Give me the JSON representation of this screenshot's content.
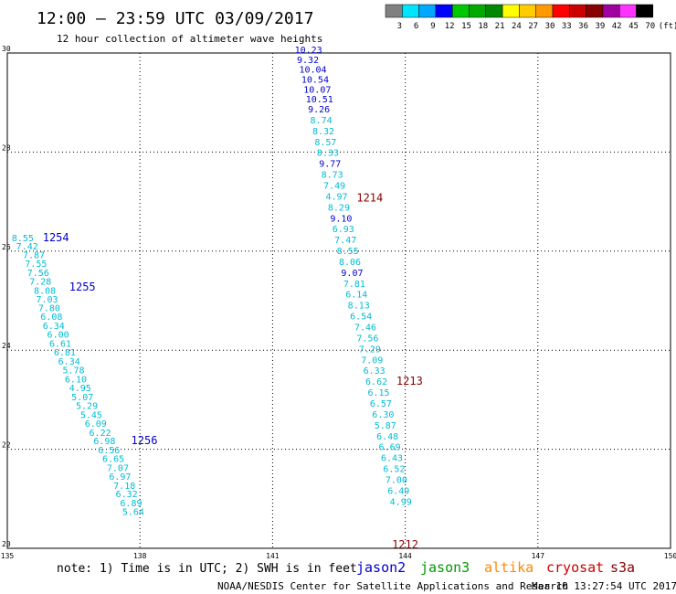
{
  "header": {
    "title": "12:00 — 23:59 UTC 03/09/2017",
    "subtitle": "12 hour collection of altimeter wave heights"
  },
  "legend": {
    "unit": "(ft)",
    "colors": [
      "#808080",
      "#00e5ff",
      "#00a8ff",
      "#0000ff",
      "#00c800",
      "#00aa00",
      "#008800",
      "#ffff00",
      "#ffcc00",
      "#ff9900",
      "#ff0000",
      "#cc0000",
      "#880000",
      "#a000a0",
      "#ff33ff",
      "#000000"
    ],
    "labels": [
      "3",
      "6",
      "9",
      "12",
      "15",
      "18",
      "21",
      "24",
      "27",
      "30",
      "33",
      "36",
      "39",
      "42",
      "45",
      "70"
    ]
  },
  "footer": {
    "note": "note: 1) Time is in UTC; 2) SWH is in feet",
    "credit": "NOAA/NESDIS Center for Satellite Applications and Research",
    "timestamp": "Mar 10 13:27:54 UTC 2017"
  },
  "satellites": [
    {
      "name": "jason2",
      "color": "#0000cc"
    },
    {
      "name": "jason3",
      "color": "#009900"
    },
    {
      "name": "altika",
      "color": "#ff8800"
    },
    {
      "name": "cryosat",
      "color": "#cc0000"
    },
    {
      "name": "s3a",
      "color": "#880000"
    }
  ],
  "chart_data": {
    "type": "scatter",
    "xlim": [
      135,
      150
    ],
    "ylim": [
      20,
      30
    ],
    "x_ticks": [
      "135",
      "138",
      "141",
      "144",
      "147",
      "150"
    ],
    "y_ticks": [
      "20",
      "22",
      "24",
      "26",
      "28",
      "30"
    ],
    "grid": true,
    "annotations": [
      {
        "text": "1254",
        "x": 135.8,
        "y": 26.2,
        "color": "#0000cc"
      },
      {
        "text": "1255",
        "x": 136.4,
        "y": 25.2,
        "color": "#0000cc"
      },
      {
        "text": "1256",
        "x": 137.8,
        "y": 22.1,
        "color": "#0000cc"
      },
      {
        "text": "1214",
        "x": 142.9,
        "y": 27.0,
        "color": "#880000"
      },
      {
        "text": "1213",
        "x": 143.8,
        "y": 23.3,
        "color": "#880000"
      },
      {
        "text": "1212",
        "x": 143.7,
        "y": 20.0,
        "color": "#880000"
      }
    ],
    "series": [
      {
        "name": "jason2",
        "points": [
          {
            "x": 135.1,
            "y": 26.2,
            "v": "8.55"
          },
          {
            "x": 135.2,
            "y": 26.03,
            "v": "7.42"
          },
          {
            "x": 135.35,
            "y": 25.86,
            "v": "7.87"
          },
          {
            "x": 135.4,
            "y": 25.68,
            "v": "7.55"
          },
          {
            "x": 135.45,
            "y": 25.5,
            "v": "7.56"
          },
          {
            "x": 135.5,
            "y": 25.32,
            "v": "7.28"
          },
          {
            "x": 135.6,
            "y": 25.14,
            "v": "8.08"
          },
          {
            "x": 135.65,
            "y": 24.96,
            "v": "7.03"
          },
          {
            "x": 135.7,
            "y": 24.79,
            "v": "7.80"
          },
          {
            "x": 135.75,
            "y": 24.61,
            "v": "6.08"
          },
          {
            "x": 135.8,
            "y": 24.43,
            "v": "6.34"
          },
          {
            "x": 135.9,
            "y": 24.25,
            "v": "6.00"
          },
          {
            "x": 135.95,
            "y": 24.07,
            "v": "6.61"
          },
          {
            "x": 136.05,
            "y": 23.89,
            "v": "6.81"
          },
          {
            "x": 136.15,
            "y": 23.71,
            "v": "6.34"
          },
          {
            "x": 136.25,
            "y": 23.53,
            "v": "5.78"
          },
          {
            "x": 136.3,
            "y": 23.35,
            "v": "6.10"
          },
          {
            "x": 136.4,
            "y": 23.17,
            "v": "4.95"
          },
          {
            "x": 136.45,
            "y": 22.99,
            "v": "5.07"
          },
          {
            "x": 136.55,
            "y": 22.81,
            "v": "5.29"
          },
          {
            "x": 136.65,
            "y": 22.63,
            "v": "5.45"
          },
          {
            "x": 136.75,
            "y": 22.45,
            "v": "6.09"
          },
          {
            "x": 136.85,
            "y": 22.27,
            "v": "6.22"
          },
          {
            "x": 136.95,
            "y": 22.1,
            "v": "6.98"
          },
          {
            "x": 137.05,
            "y": 21.92,
            "v": "6.56"
          },
          {
            "x": 137.15,
            "y": 21.74,
            "v": "6.65"
          },
          {
            "x": 137.25,
            "y": 21.56,
            "v": "7.07"
          },
          {
            "x": 137.3,
            "y": 21.38,
            "v": "6.97"
          },
          {
            "x": 137.4,
            "y": 21.2,
            "v": "7.18"
          },
          {
            "x": 137.45,
            "y": 21.03,
            "v": "6.32"
          },
          {
            "x": 137.55,
            "y": 20.85,
            "v": "6.89"
          },
          {
            "x": 137.6,
            "y": 20.67,
            "v": "5.64"
          },
          {
            "x": 141.5,
            "y": 30.0,
            "v": "10.23"
          },
          {
            "x": 141.55,
            "y": 29.8,
            "v": "9.32"
          },
          {
            "x": 141.6,
            "y": 29.6,
            "v": "10.04"
          },
          {
            "x": 141.65,
            "y": 29.4,
            "v": "10.54"
          },
          {
            "x": 141.7,
            "y": 29.2,
            "v": "10.07"
          },
          {
            "x": 141.75,
            "y": 29.0,
            "v": "10.51"
          },
          {
            "x": 141.8,
            "y": 28.8,
            "v": "9.26"
          },
          {
            "x": 141.85,
            "y": 28.58,
            "v": "8.74"
          },
          {
            "x": 141.9,
            "y": 28.36,
            "v": "8.32"
          },
          {
            "x": 141.95,
            "y": 28.14,
            "v": "8.57"
          },
          {
            "x": 142.0,
            "y": 27.92,
            "v": "8.33"
          },
          {
            "x": 142.05,
            "y": 27.7,
            "v": "9.77"
          },
          {
            "x": 142.1,
            "y": 27.48,
            "v": "8.73"
          },
          {
            "x": 142.15,
            "y": 27.26,
            "v": "7.49"
          },
          {
            "x": 142.2,
            "y": 27.04,
            "v": "4.97"
          },
          {
            "x": 142.25,
            "y": 26.82,
            "v": "8.29"
          },
          {
            "x": 142.3,
            "y": 26.6,
            "v": "9.10"
          },
          {
            "x": 142.35,
            "y": 26.38,
            "v": "6.93"
          },
          {
            "x": 142.4,
            "y": 26.16,
            "v": "7.47"
          },
          {
            "x": 142.45,
            "y": 25.94,
            "v": "8.55"
          },
          {
            "x": 142.5,
            "y": 25.72,
            "v": "8.06"
          },
          {
            "x": 142.55,
            "y": 25.5,
            "v": "9.07"
          },
          {
            "x": 142.6,
            "y": 25.28,
            "v": "7.81"
          },
          {
            "x": 142.65,
            "y": 25.06,
            "v": "6.14"
          },
          {
            "x": 142.7,
            "y": 24.84,
            "v": "8.13"
          },
          {
            "x": 142.75,
            "y": 24.62,
            "v": "6.54"
          },
          {
            "x": 142.85,
            "y": 24.4,
            "v": "7.46"
          },
          {
            "x": 142.9,
            "y": 24.18,
            "v": "7.56"
          },
          {
            "x": 142.95,
            "y": 23.96,
            "v": "7.29"
          },
          {
            "x": 143.0,
            "y": 23.74,
            "v": "7.09"
          },
          {
            "x": 143.05,
            "y": 23.52,
            "v": "6.33"
          },
          {
            "x": 143.1,
            "y": 23.3,
            "v": "6.62"
          },
          {
            "x": 143.15,
            "y": 23.08,
            "v": "6.15"
          },
          {
            "x": 143.2,
            "y": 22.86,
            "v": "6.57"
          },
          {
            "x": 143.25,
            "y": 22.64,
            "v": "6.30"
          },
          {
            "x": 143.3,
            "y": 22.42,
            "v": "5.87"
          },
          {
            "x": 143.35,
            "y": 22.2,
            "v": "6.48"
          },
          {
            "x": 143.4,
            "y": 21.98,
            "v": "6.69"
          },
          {
            "x": 143.45,
            "y": 21.76,
            "v": "6.43"
          },
          {
            "x": 143.5,
            "y": 21.54,
            "v": "6.52"
          },
          {
            "x": 143.55,
            "y": 21.32,
            "v": "7.00"
          },
          {
            "x": 143.6,
            "y": 21.1,
            "v": "6.49"
          },
          {
            "x": 143.65,
            "y": 20.88,
            "v": "4.99"
          }
        ]
      }
    ]
  }
}
